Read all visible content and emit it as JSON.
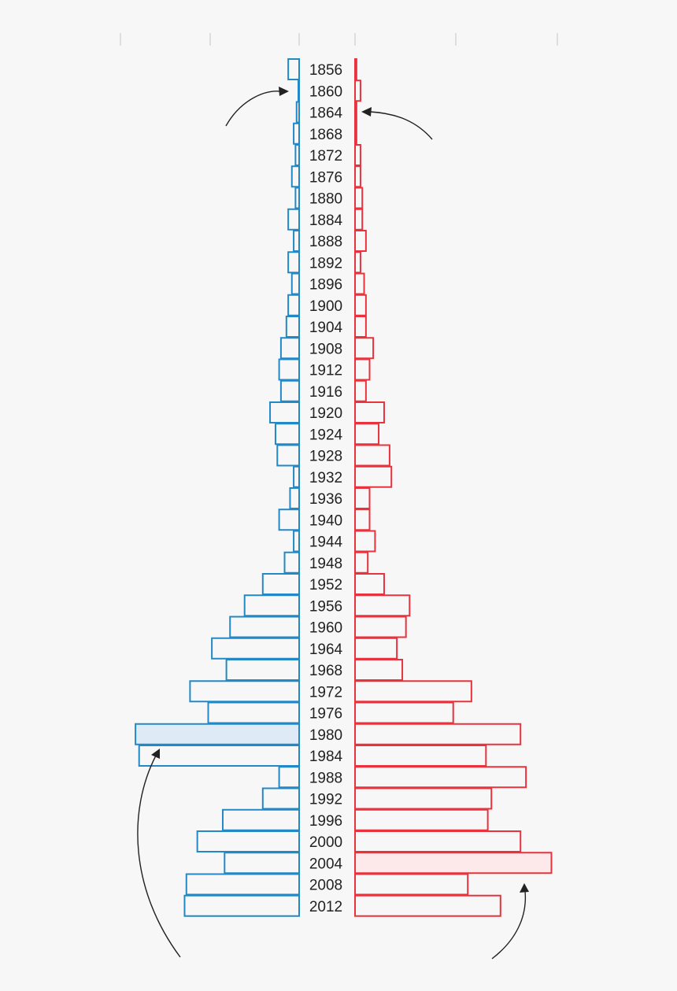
{
  "chart_data": {
    "type": "bar",
    "categories": [
      "1856",
      "1860",
      "1864",
      "1868",
      "1872",
      "1876",
      "1880",
      "1884",
      "1888",
      "1892",
      "1896",
      "1900",
      "1904",
      "1908",
      "1912",
      "1916",
      "1920",
      "1924",
      "1928",
      "1932",
      "1936",
      "1940",
      "1944",
      "1948",
      "1952",
      "1956",
      "1960",
      "1964",
      "1968",
      "1972",
      "1976",
      "1980",
      "1984",
      "1988",
      "1992",
      "1996",
      "2000",
      "2004",
      "2008",
      "2012"
    ],
    "series": [
      {
        "side": "left",
        "color": "#2389c6",
        "highlight_fill": "#dfeaf7",
        "highlight_category": "1980",
        "values": [
          3,
          0.2,
          0.7,
          1.5,
          1,
          2,
          1,
          3,
          1.5,
          3,
          2,
          3,
          3.5,
          5,
          5.5,
          5,
          8,
          6.5,
          6,
          1.5,
          2.5,
          5.5,
          1.5,
          4,
          10,
          15,
          19,
          24,
          20,
          30,
          25,
          45,
          44,
          5.5,
          10,
          21,
          28,
          20.5,
          31,
          31.5
        ]
      },
      {
        "side": "right",
        "color": "#e8323d",
        "highlight_fill": "#fde8ea",
        "highlight_category": "2004",
        "values": [
          0.4,
          1.5,
          0.4,
          0.4,
          1.5,
          1.5,
          2,
          2,
          3,
          1.5,
          2.5,
          3,
          3,
          5,
          4,
          3,
          8,
          6.5,
          9.5,
          10,
          4,
          4,
          5.5,
          3.5,
          8,
          15,
          14,
          11.5,
          13,
          32,
          27,
          45.5,
          36,
          47,
          37.5,
          36.5,
          45.5,
          54,
          31,
          40
        ]
      }
    ],
    "xlabel": "",
    "ylabel": "",
    "legend": "none",
    "grid": false
  }
}
